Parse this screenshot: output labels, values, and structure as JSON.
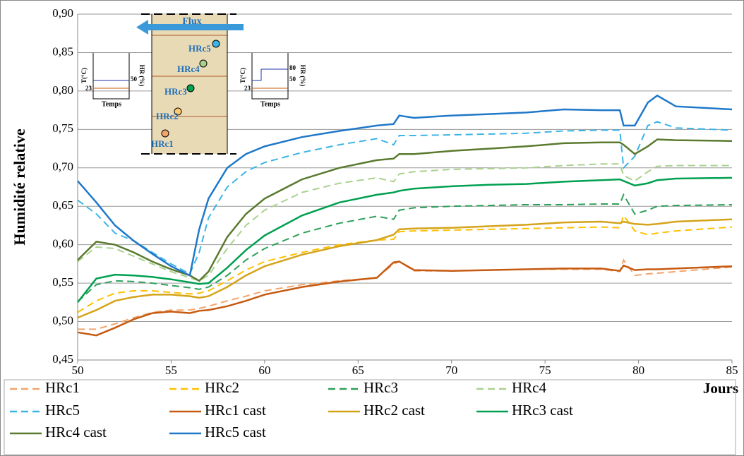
{
  "chart_data": {
    "type": "line",
    "y_label": "Humidité relative",
    "x_label": "Jours",
    "xlim": [
      50,
      85
    ],
    "xticks": [
      50,
      55,
      60,
      65,
      70,
      75,
      80,
      85
    ],
    "ylim": [
      0.45,
      0.9
    ],
    "yticks": [
      {
        "value": 0.45,
        "label": "0,45"
      },
      {
        "value": 0.5,
        "label": "0,50"
      },
      {
        "value": 0.55,
        "label": "0,55"
      },
      {
        "value": 0.6,
        "label": "0,60"
      },
      {
        "value": 0.65,
        "label": "0,65"
      },
      {
        "value": 0.7,
        "label": "0,70"
      },
      {
        "value": 0.75,
        "label": "0,75"
      },
      {
        "value": 0.8,
        "label": "0,80"
      },
      {
        "value": 0.85,
        "label": "0,85"
      },
      {
        "value": 0.9,
        "label": "0,90"
      }
    ],
    "grid": true,
    "x": [
      50,
      51,
      52,
      53,
      54,
      55,
      56,
      56.5,
      57,
      58,
      59,
      60,
      62,
      64,
      66,
      66.9,
      67.2,
      68,
      70,
      72,
      74,
      76,
      78,
      79,
      79.2,
      79.8,
      80.5,
      81,
      82,
      85
    ],
    "series": [
      {
        "name": "HRc1",
        "color": "#f4a46a",
        "dash": true,
        "values": [
          0.49,
          0.49,
          0.497,
          0.505,
          0.512,
          0.515,
          0.515,
          0.517,
          0.52,
          0.527,
          0.533,
          0.54,
          0.548,
          0.553,
          0.557,
          0.575,
          0.578,
          0.566,
          0.566,
          0.567,
          0.568,
          0.568,
          0.568,
          0.565,
          0.58,
          0.56,
          0.562,
          0.563,
          0.565,
          0.571
        ]
      },
      {
        "name": "HRc2",
        "color": "#ffc000",
        "dash": true,
        "values": [
          0.512,
          0.527,
          0.537,
          0.54,
          0.54,
          0.538,
          0.536,
          0.537,
          0.54,
          0.553,
          0.567,
          0.578,
          0.59,
          0.6,
          0.606,
          0.607,
          0.617,
          0.618,
          0.619,
          0.62,
          0.621,
          0.622,
          0.623,
          0.622,
          0.638,
          0.618,
          0.613,
          0.615,
          0.618,
          0.623
        ]
      },
      {
        "name": "HRc3",
        "color": "#2ea05a",
        "dash": true,
        "values": [
          0.526,
          0.548,
          0.553,
          0.552,
          0.55,
          0.547,
          0.544,
          0.542,
          0.545,
          0.56,
          0.58,
          0.595,
          0.615,
          0.628,
          0.637,
          0.633,
          0.645,
          0.648,
          0.65,
          0.651,
          0.652,
          0.652,
          0.653,
          0.653,
          0.665,
          0.64,
          0.645,
          0.65,
          0.651,
          0.652
        ]
      },
      {
        "name": "HRc4",
        "color": "#a9d18e",
        "dash": true,
        "values": [
          0.578,
          0.597,
          0.595,
          0.585,
          0.575,
          0.565,
          0.557,
          0.553,
          0.56,
          0.595,
          0.625,
          0.645,
          0.668,
          0.68,
          0.687,
          0.682,
          0.692,
          0.695,
          0.698,
          0.699,
          0.7,
          0.703,
          0.705,
          0.705,
          0.69,
          0.683,
          0.695,
          0.702,
          0.703,
          0.703
        ]
      },
      {
        "name": "HRc5",
        "color": "#3cb4e6",
        "dash": true,
        "values": [
          0.658,
          0.64,
          0.615,
          0.605,
          0.59,
          0.575,
          0.562,
          0.59,
          0.635,
          0.675,
          0.695,
          0.707,
          0.72,
          0.73,
          0.738,
          0.73,
          0.742,
          0.742,
          0.743,
          0.744,
          0.745,
          0.748,
          0.749,
          0.749,
          0.7,
          0.715,
          0.755,
          0.76,
          0.752,
          0.749
        ]
      },
      {
        "name": "HRc1 cast",
        "color": "#c55a11",
        "dash": false,
        "values": [
          0.486,
          0.482,
          0.492,
          0.503,
          0.511,
          0.513,
          0.511,
          0.514,
          0.515,
          0.52,
          0.527,
          0.535,
          0.545,
          0.552,
          0.557,
          0.577,
          0.578,
          0.567,
          0.566,
          0.567,
          0.568,
          0.569,
          0.569,
          0.566,
          0.573,
          0.567,
          0.568,
          0.568,
          0.569,
          0.572
        ]
      },
      {
        "name": "HRc2 cast",
        "color": "#d4a31a",
        "dash": false,
        "values": [
          0.505,
          0.515,
          0.527,
          0.532,
          0.535,
          0.535,
          0.533,
          0.531,
          0.533,
          0.545,
          0.56,
          0.572,
          0.587,
          0.598,
          0.606,
          0.613,
          0.62,
          0.621,
          0.622,
          0.624,
          0.626,
          0.629,
          0.63,
          0.628,
          0.63,
          0.627,
          0.626,
          0.627,
          0.63,
          0.633
        ]
      },
      {
        "name": "HRc3 cast",
        "color": "#00a050",
        "dash": false,
        "values": [
          0.525,
          0.556,
          0.561,
          0.56,
          0.558,
          0.555,
          0.551,
          0.549,
          0.55,
          0.57,
          0.593,
          0.612,
          0.638,
          0.655,
          0.665,
          0.668,
          0.67,
          0.673,
          0.676,
          0.678,
          0.679,
          0.682,
          0.684,
          0.685,
          0.683,
          0.677,
          0.68,
          0.684,
          0.686,
          0.687
        ]
      },
      {
        "name": "HRc4 cast",
        "color": "#5a7a2e",
        "dash": false,
        "values": [
          0.58,
          0.604,
          0.6,
          0.59,
          0.578,
          0.568,
          0.56,
          0.553,
          0.565,
          0.61,
          0.64,
          0.66,
          0.685,
          0.7,
          0.71,
          0.712,
          0.718,
          0.718,
          0.722,
          0.725,
          0.728,
          0.732,
          0.733,
          0.733,
          0.73,
          0.718,
          0.728,
          0.737,
          0.736,
          0.735
        ]
      },
      {
        "name": "HRc5 cast",
        "color": "#1f78c8",
        "dash": false,
        "values": [
          0.683,
          0.655,
          0.625,
          0.605,
          0.588,
          0.572,
          0.56,
          0.62,
          0.66,
          0.7,
          0.718,
          0.728,
          0.74,
          0.748,
          0.755,
          0.757,
          0.768,
          0.765,
          0.768,
          0.77,
          0.772,
          0.776,
          0.775,
          0.775,
          0.755,
          0.755,
          0.785,
          0.794,
          0.78,
          0.776
        ]
      }
    ],
    "inset": {
      "flux": "Flux",
      "sensors": [
        "HRc1",
        "HRc2",
        "HRc3",
        "HRc4",
        "HRc5"
      ],
      "left_panel": {
        "y_label": "T(°C)",
        "y2_label": "HR (%)",
        "x_label": "Temps",
        "t_label": "23",
        "hr_label": "50"
      },
      "right_panel": {
        "y_label": "T(°C)",
        "y2_label": "HR (%)",
        "x_label": "Temps",
        "t_label": "23",
        "hr_label": "50",
        "hr2_label": "80"
      }
    }
  }
}
